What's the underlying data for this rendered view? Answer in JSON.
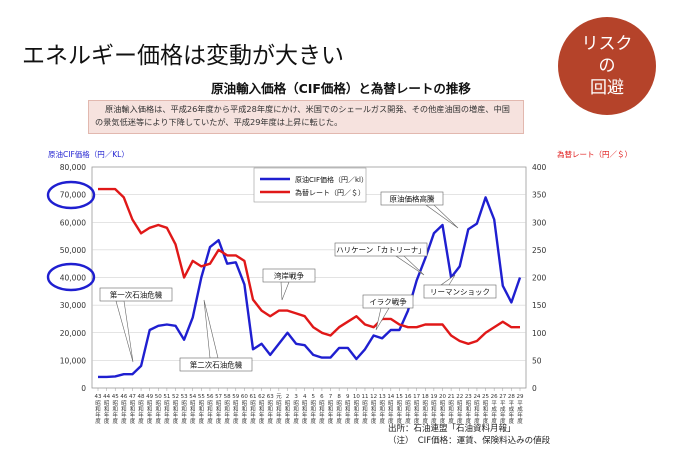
{
  "page": {
    "title": "エネルギー価格は変動が大きい",
    "badge": [
      "リスク",
      "の",
      "回避"
    ],
    "note_text": "原油輸入価格は、平成26年度から平成28年度にかけ、米国でのシェールガス開発、その他産油国の増産、中国の景気低迷等により下降していたが、平成29年度は上昇に転じた。",
    "source_lines": [
      "出所：石油連盟「石油資料月報」",
      "（注）　CIF価格：運賃、保険料込みの値段"
    ]
  },
  "colors": {
    "crude": "#1f1fd0",
    "fx": "#e01818",
    "badge": "#b5432a",
    "note_bg": "#f6e2de"
  },
  "chart_data": {
    "type": "line",
    "title": "原油輸入価格（CIF価格）と為替レートの推移",
    "xlabel": "",
    "ylabel_left": "原油CIF価格（円／KL）",
    "ylabel_right": "為替レート（円／＄）",
    "ylim_left": [
      0,
      80000
    ],
    "ylim_right": [
      0,
      400
    ],
    "yticks_left": [
      "0",
      "10,000",
      "20,000",
      "30,000",
      "40,000",
      "50,000",
      "60,000",
      "70,000",
      "80,000"
    ],
    "yticks_right": [
      "0",
      "50",
      "100",
      "150",
      "200",
      "250",
      "300",
      "350",
      "400"
    ],
    "x_era_rows": [
      "昭",
      "和",
      "年",
      "度"
    ],
    "x_era_switch": {
      "from_index": 46,
      "rows": [
        "平",
        "成",
        "年",
        "度"
      ]
    },
    "categories": [
      "43",
      "44",
      "45",
      "46",
      "47",
      "48",
      "49",
      "50",
      "51",
      "52",
      "53",
      "54",
      "55",
      "56",
      "57",
      "58",
      "59",
      "60",
      "61",
      "62",
      "63",
      "元",
      "2",
      "3",
      "4",
      "5",
      "6",
      "7",
      "8",
      "9",
      "10",
      "11",
      "12",
      "13",
      "14",
      "15",
      "16",
      "17",
      "18",
      "19",
      "20",
      "21",
      "22",
      "23",
      "24",
      "25",
      "26",
      "27",
      "28",
      "29"
    ],
    "series": [
      {
        "name": "原油CIF価格（円／kl）",
        "axis": "left",
        "values": [
          4000,
          4000,
          4200,
          5000,
          5000,
          8000,
          21000,
          22500,
          23000,
          22500,
          17500,
          25500,
          40000,
          51000,
          53500,
          45000,
          45500,
          37500,
          14000,
          16000,
          12000,
          16000,
          20000,
          16000,
          15500,
          12000,
          11000,
          11000,
          14500,
          14500,
          10500,
          14000,
          19000,
          18000,
          21000,
          21000,
          28000,
          39000,
          47000,
          56000,
          59000,
          40000,
          44000,
          57500,
          59500,
          69000,
          61000,
          37000,
          31000,
          40000
        ]
      },
      {
        "name": "為替レート（円／＄）",
        "axis": "right",
        "values": [
          360,
          360,
          360,
          345,
          305,
          280,
          290,
          295,
          290,
          260,
          200,
          230,
          220,
          225,
          250,
          240,
          240,
          230,
          160,
          140,
          130,
          140,
          140,
          135,
          130,
          110,
          100,
          95,
          110,
          120,
          130,
          115,
          110,
          125,
          125,
          115,
          110,
          110,
          115,
          115,
          115,
          95,
          85,
          80,
          85,
          100,
          110,
          120,
          110,
          110
        ]
      }
    ],
    "annotations": [
      "第一次石油危機",
      "第二次石油危機",
      "湾岸戦争",
      "イラク戦争",
      "ハリケーン「カトリーナ」",
      "リーマンショック",
      "原油価格高騰"
    ],
    "legend": "top-center",
    "grid": true
  }
}
